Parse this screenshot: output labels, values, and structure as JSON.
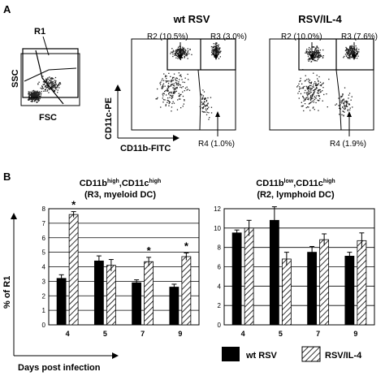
{
  "panel_a": {
    "label": "A",
    "gate_plot": {
      "region": "R1",
      "x_axis": "FSC",
      "y_axis": "SSC"
    },
    "y_axis_marker": "CD11c-PE",
    "x_axis_marker": "CD11b-FITC",
    "plots": [
      {
        "title": "wt RSV",
        "r2": "R2 (10.5%)",
        "r3": "R3 (3.0%)",
        "r4": "R4 (1.0%)"
      },
      {
        "title": "RSV/IL-4",
        "r2": "R2 (10.0%)",
        "r3": "R3 (7.6%)",
        "r4": "R4 (1.9%)"
      }
    ]
  },
  "panel_b": {
    "label": "B",
    "y_label": "% of R1",
    "x_label": "Days post infection",
    "legend": {
      "wt": "wt RSV",
      "il4": "RSV/IL-4"
    }
  },
  "chart_data": [
    {
      "type": "bar",
      "title": "CD11bʰⁱᵍʰ,CD11cʰⁱᵍʰ",
      "title_line1": "CD11b",
      "title_sup1": "high",
      "title_mid": ",CD11c",
      "title_sup2": "high",
      "subtitle": "(R3, myeloid DC)",
      "categories": [
        "4",
        "5",
        "7",
        "9"
      ],
      "ylim": [
        0,
        8
      ],
      "yticks": [
        "0",
        "1",
        "2",
        "3",
        "4",
        "5",
        "6",
        "7",
        "8"
      ],
      "grid": true,
      "series": [
        {
          "name": "wt RSV",
          "values": [
            3.2,
            4.4,
            2.9,
            2.6
          ],
          "errors": [
            0.25,
            0.35,
            0.2,
            0.2
          ]
        },
        {
          "name": "RSV/IL-4",
          "values": [
            7.6,
            4.1,
            4.35,
            4.7
          ],
          "errors": [
            0.2,
            0.4,
            0.3,
            0.25
          ]
        }
      ],
      "significance": [
        true,
        false,
        true,
        true
      ],
      "sig_mark": "*"
    },
    {
      "type": "bar",
      "title_line1": "CD11b",
      "title_sup1": "low",
      "title_mid": ",CD11c",
      "title_sup2": "high",
      "subtitle": "(R2, lymphoid DC)",
      "categories": [
        "4",
        "5",
        "7",
        "9"
      ],
      "ylim": [
        0,
        12
      ],
      "yticks": [
        "0",
        "2",
        "4",
        "6",
        "8",
        "10",
        "12"
      ],
      "grid": true,
      "series": [
        {
          "name": "wt RSV",
          "values": [
            9.5,
            10.8,
            7.5,
            7.1
          ],
          "errors": [
            0.3,
            1.4,
            0.6,
            0.4
          ]
        },
        {
          "name": "RSV/IL-4",
          "values": [
            10.0,
            6.8,
            8.8,
            8.7
          ],
          "errors": [
            0.8,
            0.7,
            0.6,
            0.8
          ]
        }
      ],
      "significance": [
        false,
        false,
        false,
        false
      ],
      "sig_mark": "*"
    }
  ]
}
